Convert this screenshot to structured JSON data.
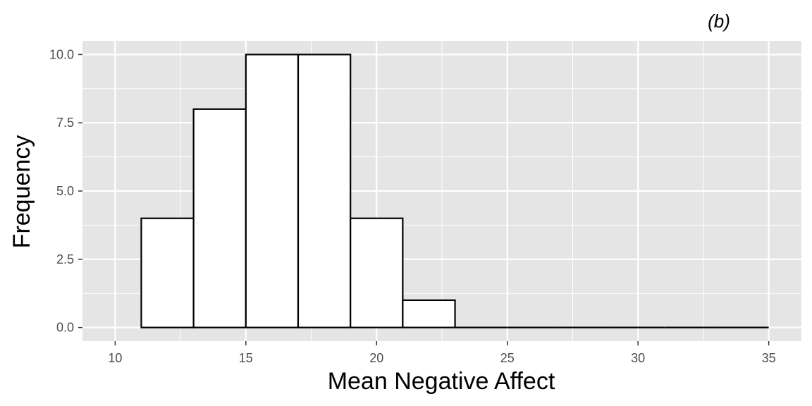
{
  "panel_label": "(b)",
  "chart_data": {
    "type": "bar",
    "subtype": "histogram",
    "xlabel": "Mean Negative Affect",
    "ylabel": "Frequency",
    "xlim": [
      8.75,
      36.25
    ],
    "ylim": [
      -0.5,
      10.5
    ],
    "x_ticks": [
      10,
      15,
      20,
      25,
      30,
      35
    ],
    "x_tick_labels": [
      "10",
      "15",
      "20",
      "25",
      "30",
      "35"
    ],
    "y_ticks": [
      0,
      2.5,
      5,
      7.5,
      10
    ],
    "y_tick_labels": [
      "0.0",
      "2.5",
      "5.0",
      "7.5",
      "10.0"
    ],
    "bin_width": 2,
    "bins": [
      {
        "start": 11,
        "end": 13,
        "count": 4
      },
      {
        "start": 13,
        "end": 15,
        "count": 8
      },
      {
        "start": 15,
        "end": 17,
        "count": 10
      },
      {
        "start": 17,
        "end": 19,
        "count": 10
      },
      {
        "start": 19,
        "end": 21,
        "count": 4
      },
      {
        "start": 21,
        "end": 23,
        "count": 1
      },
      {
        "start": 23,
        "end": 25,
        "count": 0
      },
      {
        "start": 25,
        "end": 27,
        "count": 0
      },
      {
        "start": 27,
        "end": 29,
        "count": 0
      },
      {
        "start": 29,
        "end": 31,
        "count": 0
      },
      {
        "start": 31,
        "end": 33,
        "count": 0
      },
      {
        "start": 33,
        "end": 35,
        "count": 0
      }
    ],
    "panel_background": "#e5e5e5",
    "grid": true,
    "grid_color": "#ffffff",
    "bar_fill": "#ffffff",
    "bar_stroke": "#000000"
  }
}
